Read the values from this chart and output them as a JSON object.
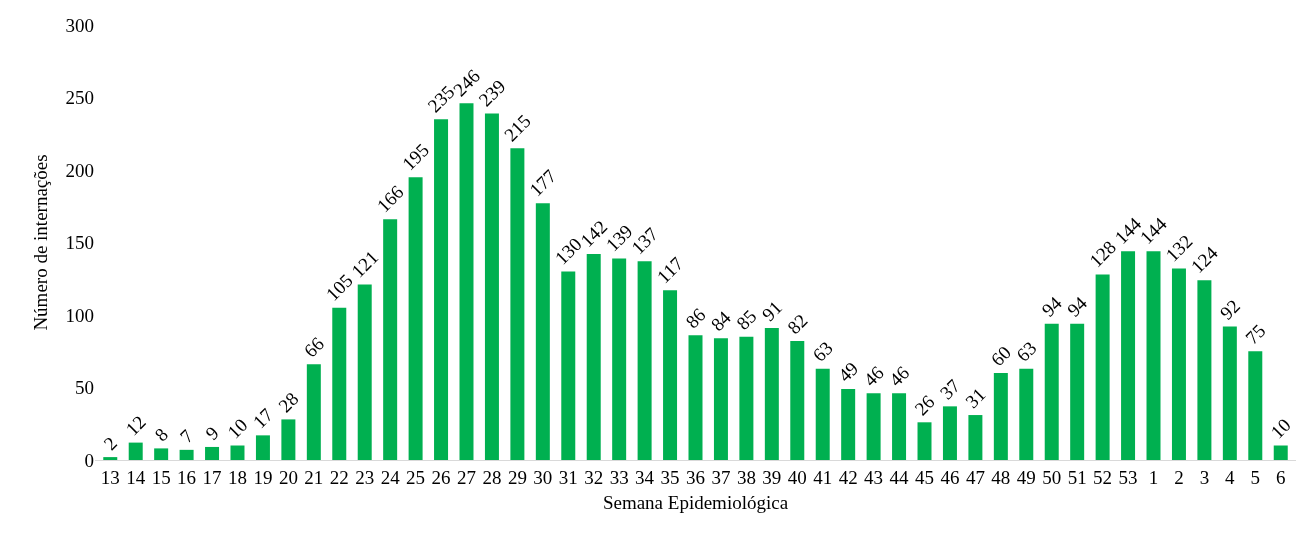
{
  "chart_data": {
    "type": "bar",
    "xlabel": "Semana Epidemiológica",
    "ylabel": "Número de internações",
    "categories": [
      "13",
      "14",
      "15",
      "16",
      "17",
      "18",
      "19",
      "20",
      "21",
      "22",
      "23",
      "24",
      "25",
      "26",
      "27",
      "28",
      "29",
      "30",
      "31",
      "32",
      "33",
      "34",
      "35",
      "36",
      "37",
      "38",
      "39",
      "40",
      "41",
      "42",
      "43",
      "44",
      "45",
      "46",
      "47",
      "48",
      "49",
      "50",
      "51",
      "52",
      "53",
      "1",
      "2",
      "3",
      "4",
      "5",
      "6"
    ],
    "values": [
      2,
      12,
      8,
      7,
      9,
      10,
      17,
      28,
      66,
      105,
      121,
      166,
      195,
      235,
      246,
      239,
      215,
      177,
      130,
      142,
      139,
      137,
      117,
      86,
      84,
      85,
      91,
      82,
      63,
      49,
      46,
      46,
      26,
      37,
      31,
      60,
      63,
      94,
      94,
      128,
      144,
      144,
      132,
      124,
      92,
      75,
      10
    ],
    "color": "#00b050",
    "ylim": [
      0,
      300
    ],
    "yticks": [
      0,
      50,
      100,
      150,
      200,
      250,
      300
    ],
    "grid": false,
    "legend": false,
    "data_labels": true
  }
}
